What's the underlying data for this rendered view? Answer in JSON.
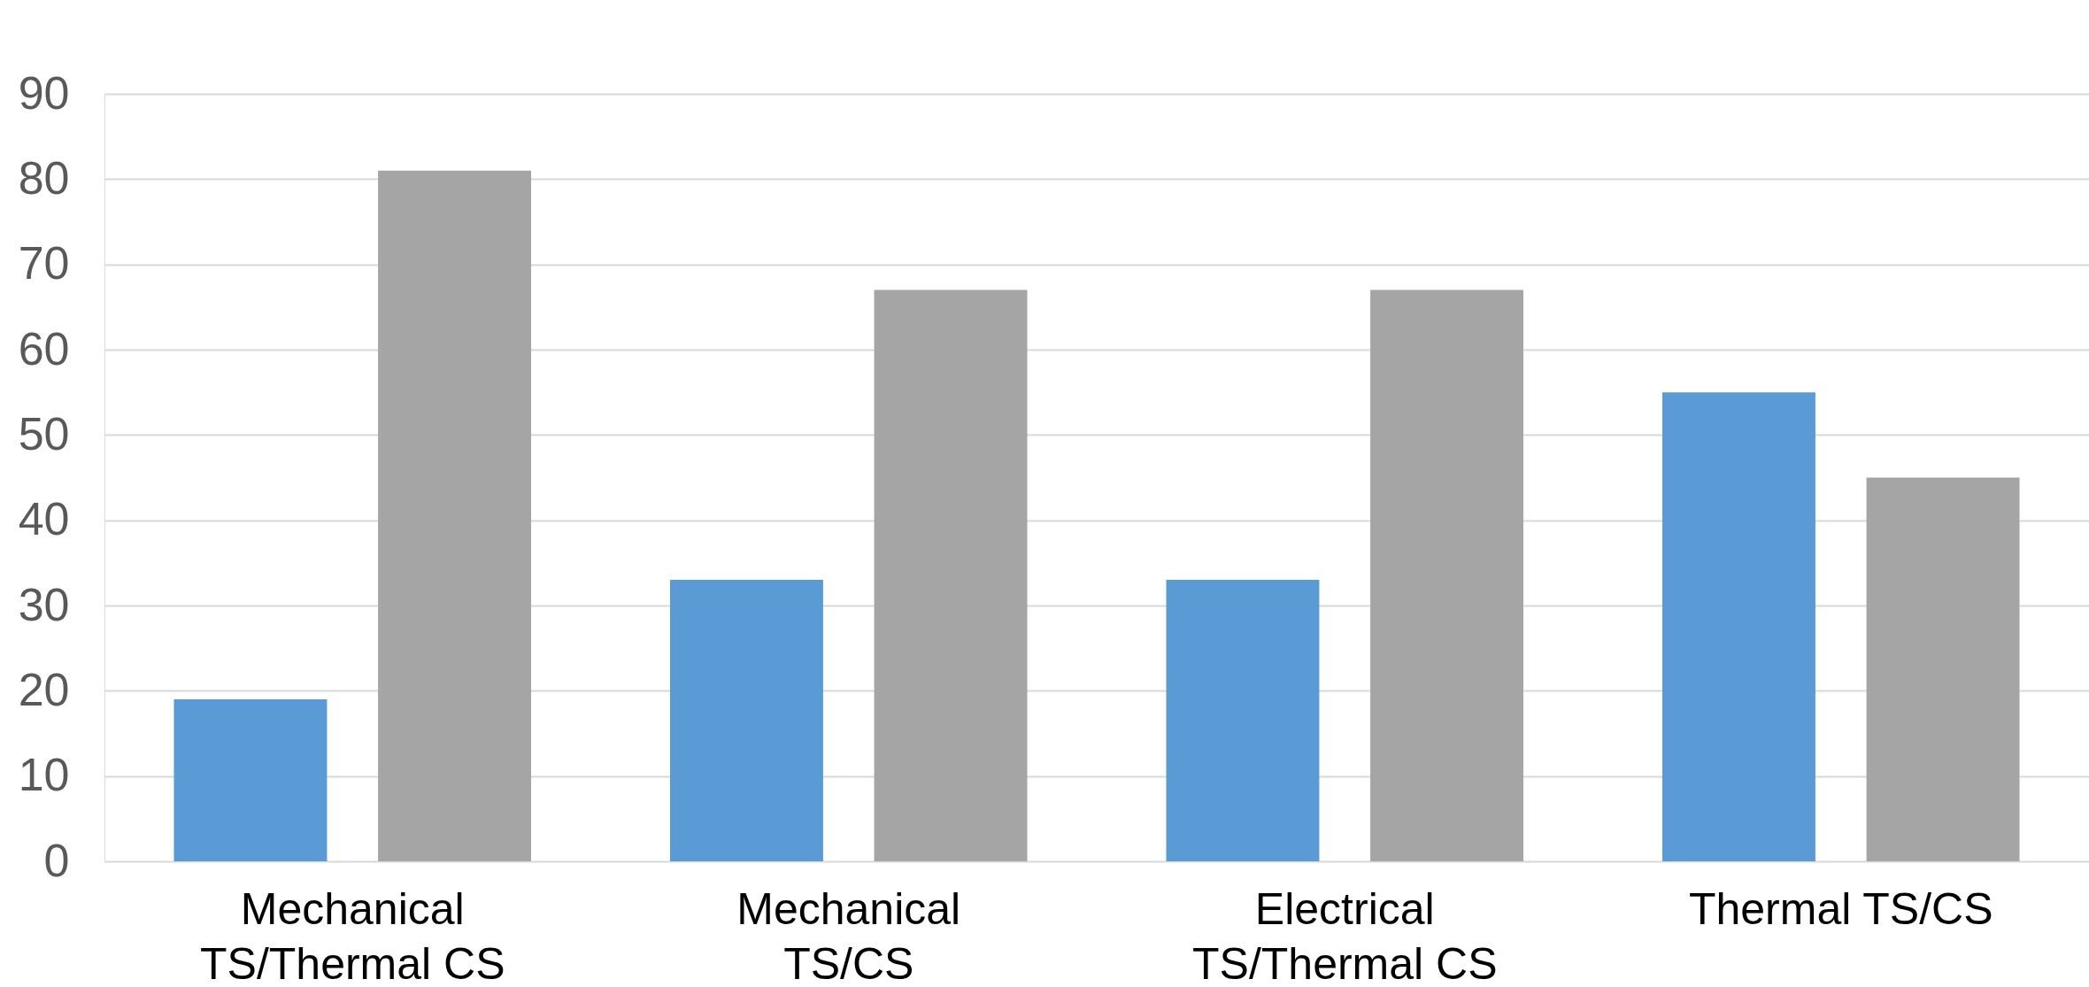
{
  "chart_data": {
    "type": "bar",
    "categories": [
      "Mechanical TS/Thermal CS",
      "Mechanical TS/CS",
      "Electrical TS/Thermal CS",
      "Thermal TS/CS"
    ],
    "series": [
      {
        "color": "#5b9bd5",
        "values": [
          19,
          33,
          33,
          55
        ]
      },
      {
        "color": "#a5a5a5",
        "values": [
          81,
          67,
          67,
          45
        ]
      }
    ],
    "ylim": [
      0,
      90
    ],
    "yticks": [
      0,
      10,
      20,
      30,
      40,
      50,
      60,
      70,
      80,
      90
    ],
    "grid": "y",
    "legend": false
  }
}
